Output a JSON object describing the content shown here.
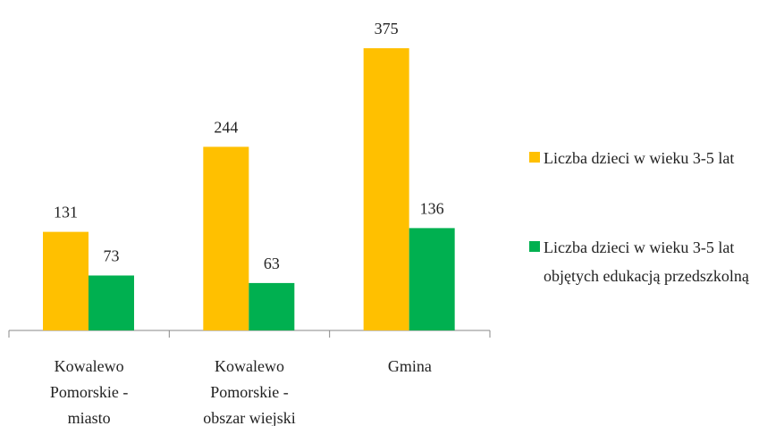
{
  "chart_data": {
    "type": "bar",
    "categories": [
      "Kowalewo Pomorskie - miasto",
      "Kowalewo Pomorskie - obszar wiejski",
      "Gmina"
    ],
    "series": [
      {
        "name": "Liczba dzieci w wieku 3-5 lat",
        "color": "#FFC000",
        "values": [
          131,
          244,
          375
        ]
      },
      {
        "name": "Liczba dzieci w wieku 3-5 lat objętych edukacją przedszkolną",
        "color": "#00B050",
        "values": [
          73,
          63,
          136
        ]
      }
    ],
    "legend": "right"
  }
}
